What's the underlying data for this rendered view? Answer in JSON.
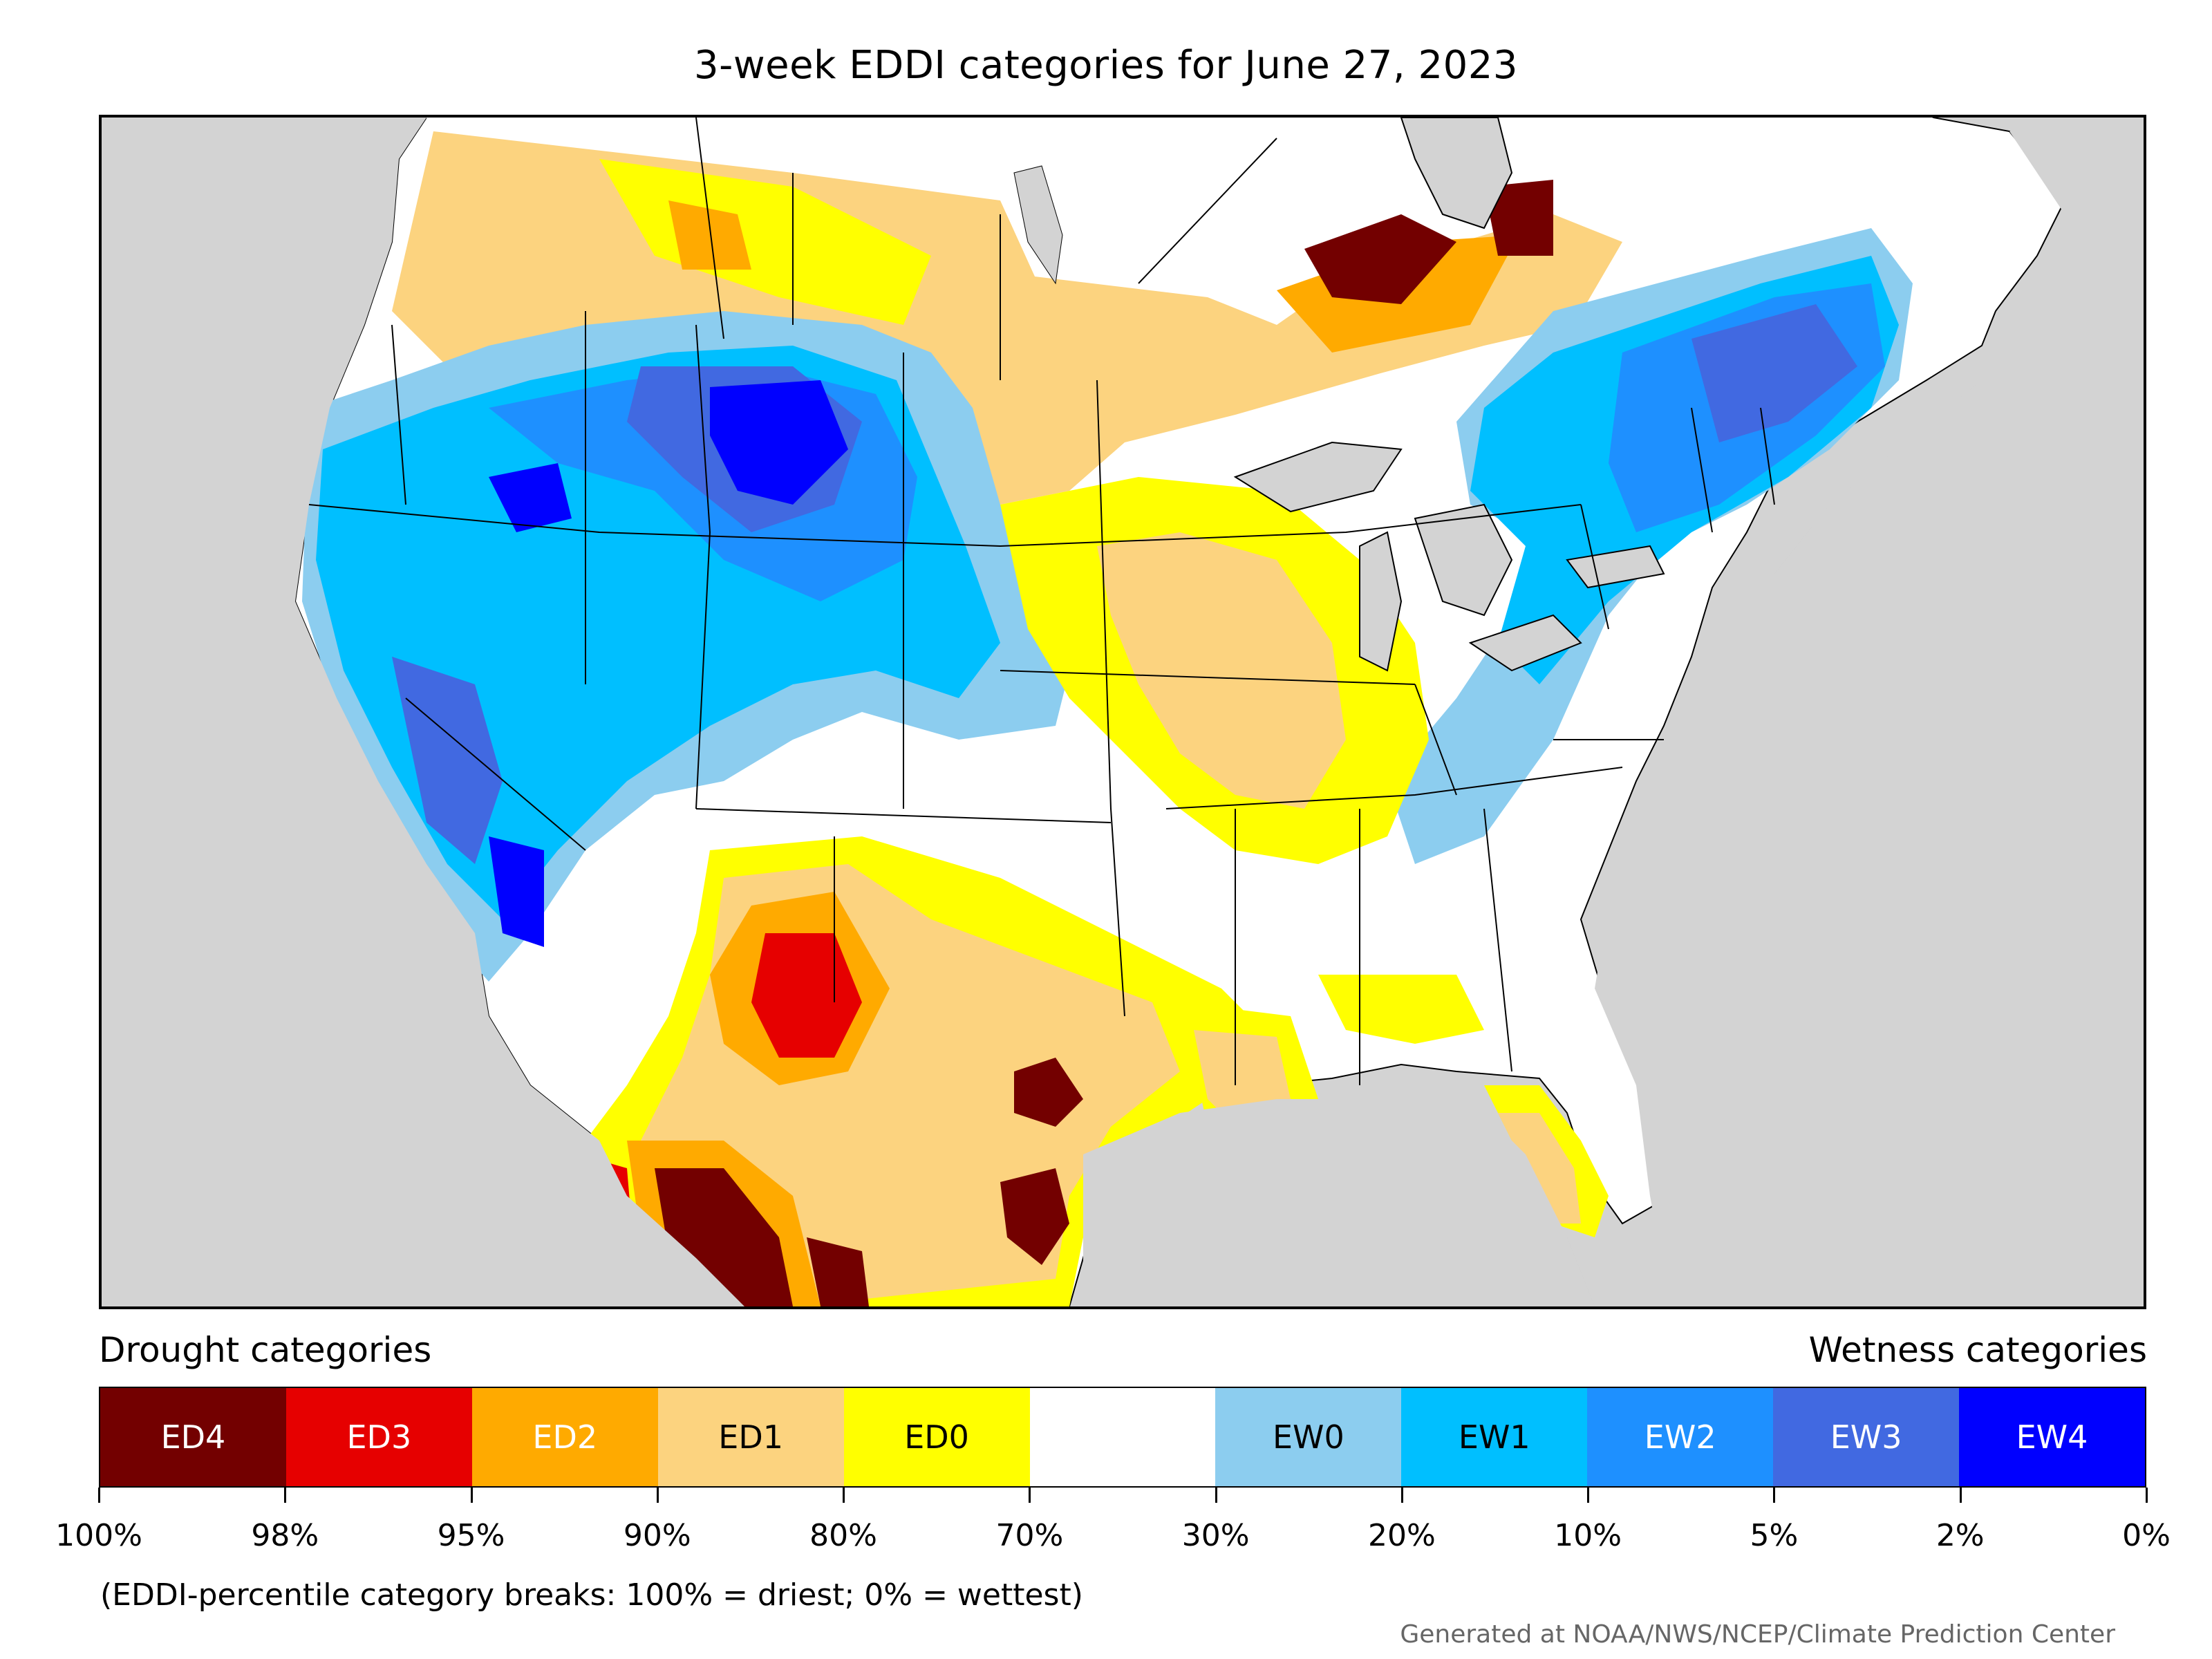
{
  "title": "3-week EDDI categories for June 27, 2023",
  "legend": {
    "left_label": "Drought categories",
    "right_label": "Wetness categories",
    "categories": [
      {
        "label": "ED4",
        "color": "#730000",
        "text_color": "#ffffff"
      },
      {
        "label": "ED3",
        "color": "#e60000",
        "text_color": "#ffffff"
      },
      {
        "label": "ED2",
        "color": "#ffaa00",
        "text_color": "#ffffff"
      },
      {
        "label": "ED1",
        "color": "#fcd37f",
        "text_color": "#000000"
      },
      {
        "label": "ED0",
        "color": "#ffff00",
        "text_color": "#000000"
      },
      {
        "label": "",
        "color": "#ffffff",
        "text_color": "#000000"
      },
      {
        "label": "EW0",
        "color": "#8ccdef",
        "text_color": "#000000"
      },
      {
        "label": "EW1",
        "color": "#00bfff",
        "text_color": "#000000"
      },
      {
        "label": "EW2",
        "color": "#1e90ff",
        "text_color": "#ffffff"
      },
      {
        "label": "EW3",
        "color": "#4169e1",
        "text_color": "#ffffff"
      },
      {
        "label": "EW4",
        "color": "#0000ff",
        "text_color": "#ffffff"
      }
    ],
    "tick_labels": [
      "100%",
      "98%",
      "95%",
      "90%",
      "80%",
      "70%",
      "30%",
      "20%",
      "10%",
      "5%",
      "2%",
      "0%"
    ]
  },
  "note": "(EDDI-percentile category breaks: 100% = driest; 0% = wettest)",
  "credit": "Generated at NOAA/NWS/NCEP/Climate Prediction Center",
  "colors": {
    "background_land_outside": "#d3d3d3",
    "water": "#d3d3d3",
    "border": "#000000"
  }
}
